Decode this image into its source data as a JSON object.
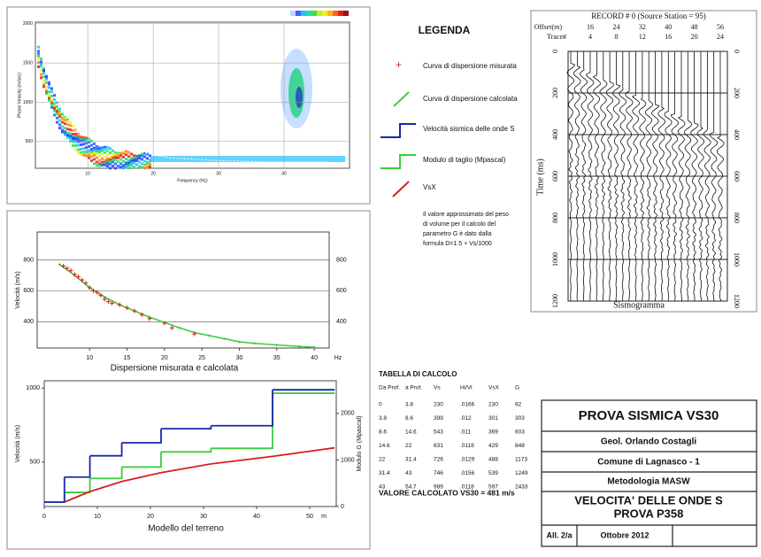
{
  "chart_data": [
    {
      "type": "heatmap",
      "x_label": "Frequency (Hz)",
      "y_label": "Phase Velocity (m/sec)",
      "xlim": [
        2,
        50
      ],
      "ylim": [
        160,
        2020
      ],
      "xticks": [
        10,
        20,
        30,
        40
      ],
      "yticks": [
        500,
        1000,
        1500,
        2000
      ]
    },
    {
      "type": "scatter-line",
      "title": "Dispersione misurata e calcolata",
      "y_label": "Velocità (m/s)",
      "x_unit": "Hz",
      "xlim": [
        3,
        42
      ],
      "ylim": [
        230,
        980
      ],
      "xticks": [
        10,
        15,
        20,
        25,
        30,
        35,
        40
      ],
      "yticks": [
        400,
        600,
        800
      ],
      "grid": true,
      "measured": {
        "color": "#d42020",
        "x": [
          6.5,
          7,
          7.5,
          8,
          8.5,
          9,
          9.5,
          10,
          10.5,
          11,
          11.5,
          12,
          12.5,
          13,
          14,
          15,
          16,
          17,
          18,
          20,
          21,
          24
        ],
        "values": [
          760,
          745,
          730,
          705,
          690,
          670,
          650,
          620,
          600,
          590,
          570,
          545,
          530,
          520,
          510,
          490,
          470,
          445,
          420,
          390,
          360,
          320
        ]
      },
      "calculated": {
        "color": "#3ccc3c",
        "x": [
          6,
          8,
          10,
          12,
          14,
          16,
          18,
          20,
          22,
          24,
          26,
          28,
          30,
          32,
          35,
          38,
          40
        ],
        "values": [
          770,
          700,
          620,
          560,
          510,
          470,
          430,
          395,
          360,
          330,
          310,
          290,
          270,
          260,
          250,
          240,
          235
        ]
      }
    },
    {
      "type": "step",
      "title": "Modello del terreno",
      "y_label": "Velocità (m/s)",
      "y2_label": "Modulo G (Mpascal)",
      "x_unit": "m",
      "xlim": [
        0,
        55
      ],
      "ylim": [
        200,
        1050
      ],
      "y2lim": [
        0,
        2700
      ],
      "xticks": [
        0,
        10,
        20,
        30,
        40,
        50
      ],
      "yticks": [
        500,
        1000
      ],
      "y2ticks": [
        0,
        1000,
        2000
      ],
      "colors": {
        "vs": "#1a28a8",
        "g": "#3ccc3c",
        "vsx": "#d42020"
      }
    },
    {
      "type": "seismogram",
      "title": "RECORD # 0 (Source Station = 95)",
      "offset_label": "Offset(m)",
      "trace_label": "Trace#",
      "offsets": [
        16,
        24,
        32,
        40,
        48,
        56
      ],
      "traces": [
        4,
        8,
        12,
        16,
        20,
        24
      ],
      "y_label": "Time (ms)",
      "caption": "Sismogramma",
      "ylim": [
        0,
        1200
      ],
      "yticks": [
        0,
        200,
        400,
        600,
        800,
        1000,
        1200
      ]
    }
  ],
  "legend": {
    "title": "LEGENDA",
    "items": [
      "Curva di dispersione misurata",
      "Curva di dispersione calcolata",
      "Velocità sismica delle onde S",
      "Modulo di taglio (Mpascal)",
      "VsX"
    ],
    "note": [
      "Il valore approssimato del peso",
      "di volume per il calcolo del",
      "parametro G è dato dalla",
      "formula D=1.5 + Vs/1000"
    ]
  },
  "table": {
    "title": "TABELLA DI CALCOLO",
    "header": [
      "Da Prof.",
      "a Prof.",
      "Vs",
      "Hi/Vi",
      "VsX",
      "G"
    ],
    "rows": [
      [
        0,
        3.8,
        230,
        ".0166",
        230,
        92
      ],
      [
        3.8,
        8.6,
        399,
        ".012",
        301,
        303
      ],
      [
        8.6,
        14.6,
        543,
        ".011",
        369,
        603
      ],
      [
        14.6,
        22,
        631,
        ".0118",
        429,
        848
      ],
      [
        22,
        31.4,
        726,
        ".0129",
        488,
        1173
      ],
      [
        31.4,
        43,
        746,
        ".0156",
        539,
        1249
      ],
      [
        43,
        54.7,
        989,
        ".0118",
        597,
        2433
      ]
    ],
    "result": "VALORE CALCOLATO VS30 =  481 m/s"
  },
  "title_block": {
    "title": "PROVA SISMICA VS30",
    "author": "Geol. Orlando Costagli",
    "site": "Comune di Lagnasco - 1",
    "method": "Metodologia MASW",
    "subject": [
      "VELOCITA' DELLE ONDE S",
      "PROVA P358"
    ],
    "attachment": "All. 2/a",
    "date": "Ottobre 2012"
  }
}
